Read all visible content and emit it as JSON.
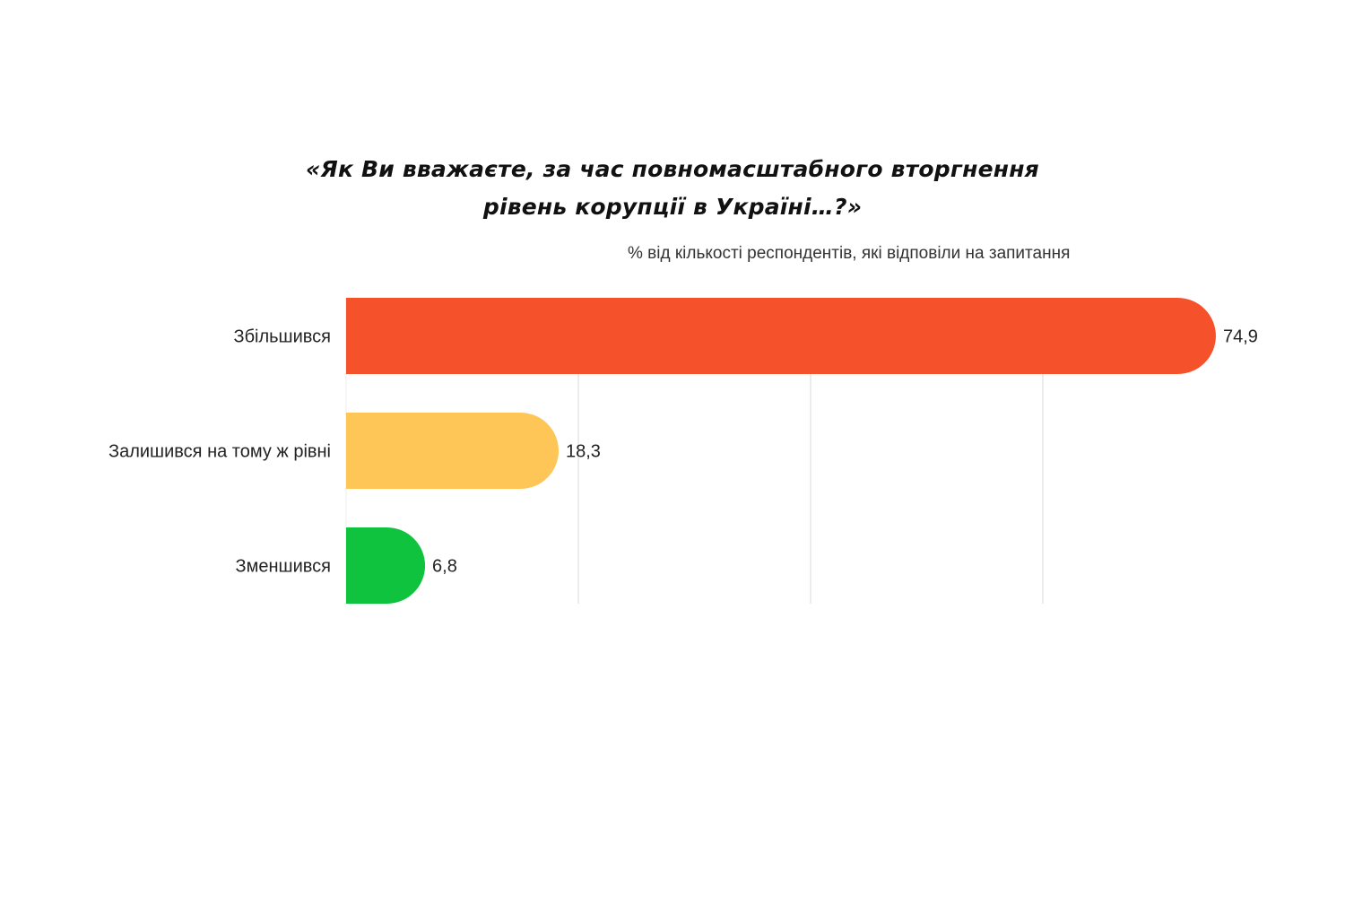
{
  "chart_data": {
    "type": "bar",
    "orientation": "horizontal",
    "title_lines": [
      "«Як Ви вважаєте, за час повномасштабного вторгнення",
      "рівень корупції в Україні…?»"
    ],
    "subtitle": "% від кількості респондентів, які відповіли на запитання",
    "categories": [
      "Збільшився",
      "Залишився на тому ж рівні",
      "Зменшився"
    ],
    "values": [
      74.9,
      18.3,
      6.8
    ],
    "value_labels": [
      "74,9",
      "18,3",
      "6,8"
    ],
    "colors": [
      "#f5512a",
      "#fdc656",
      "#10c33f"
    ],
    "xlim": [
      0,
      80
    ],
    "grid": true,
    "gridline_color": "#e6e6e6"
  }
}
